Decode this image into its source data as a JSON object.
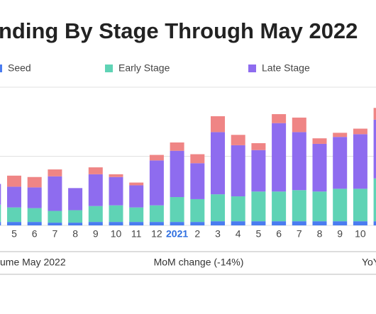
{
  "chart_data": {
    "type": "stacked_bar",
    "title": "nding By Stage Through May 2022",
    "categories": [
      null,
      "5",
      "6",
      "7",
      "8",
      "9",
      "10",
      "11",
      "12",
      "2021",
      "2",
      "3",
      "4",
      "5",
      "6",
      "7",
      "8",
      "9",
      "10",
      null
    ],
    "highlight_category": "2021",
    "highlight_color": "#2f6fe0",
    "series": [
      {
        "name": "Seed",
        "color": "#4a7cf0",
        "values": [
          5,
          5,
          5,
          4,
          4,
          5,
          5,
          5,
          5,
          5,
          5,
          6,
          6,
          6,
          6,
          6,
          6,
          6,
          6,
          6
        ]
      },
      {
        "name": "Early Stage",
        "color": "#5fd3b5",
        "values": [
          25,
          21,
          20,
          17,
          18,
          23,
          24,
          21,
          24,
          36,
          33,
          39,
          36,
          43,
          43,
          45,
          43,
          47,
          47,
          62
        ]
      },
      {
        "name": "Late Stage",
        "color": "#8e6cef",
        "values": [
          30,
          30,
          30,
          50,
          32,
          46,
          41,
          32,
          65,
          67,
          52,
          90,
          74,
          60,
          99,
          84,
          69,
          75,
          79,
          85
        ]
      },
      {
        "color": "#ef8585",
        "values": [
          0,
          16,
          15,
          10,
          0,
          10,
          4,
          4,
          8,
          12,
          13,
          23,
          15,
          10,
          13,
          21,
          8,
          6,
          8,
          17
        ]
      }
    ],
    "ylim": [
      0,
      200
    ],
    "yticks": [
      0,
      100,
      200
    ],
    "grid": true,
    "footer": {
      "left": "ume May 2022",
      "center": "MoM change (-14%)",
      "right": "YoY"
    }
  }
}
